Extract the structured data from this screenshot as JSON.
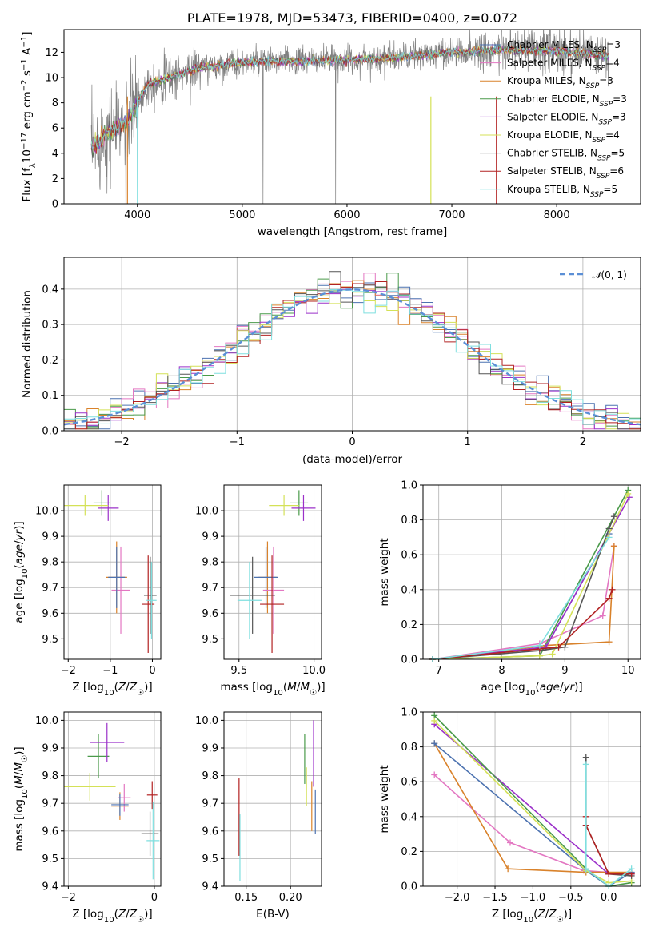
{
  "figure_title": "PLATE=1978, MJD=53473, FIBERID=0400, z=0.072",
  "palette": [
    "#4c72b0",
    "#e377c2",
    "#d9822b",
    "#4a9a4a",
    "#9b30c9",
    "#d4e157",
    "#555555",
    "#b22222",
    "#7fdfdf"
  ],
  "chart_data": [
    {
      "id": "spectrum",
      "type": "line",
      "title": "PLATE=1978, MJD=53473, FIBERID=0400, z=0.072",
      "xlabel": "wavelength [Angstrom, rest frame]",
      "ylabel": "Flux [f_λ 10^-17 erg cm^-2 s^-1 A^-1]",
      "xlim": [
        3300,
        8800
      ],
      "ylim": [
        0,
        13.8
      ],
      "xticks": [
        4000,
        5000,
        6000,
        7000,
        8000
      ],
      "yticks": [
        0,
        2,
        4,
        6,
        8,
        10,
        12
      ],
      "continuum_x": [
        3560,
        3700,
        3900,
        4000,
        4100,
        4300,
        4600,
        5000,
        5500,
        6000,
        6500,
        7000,
        7500,
        8000,
        8500
      ],
      "continuum_y": [
        4.3,
        5.5,
        6.5,
        8.0,
        9.5,
        10.0,
        10.8,
        11.2,
        11.3,
        11.4,
        11.6,
        12.0,
        12.2,
        12.1,
        11.7
      ],
      "legend_location": "right",
      "series": [
        {
          "name": "Chabrier MILES, N_SSP=3",
          "color": "#4c72b0"
        },
        {
          "name": "Salpeter MILES, N_SSP=4",
          "color": "#e377c2"
        },
        {
          "name": "Kroupa MILES, N_SSP=3",
          "color": "#d9822b"
        },
        {
          "name": "Chabrier ELODIE, N_SSP=3",
          "color": "#4a9a4a"
        },
        {
          "name": "Salpeter ELODIE, N_SSP=3",
          "color": "#9b30c9"
        },
        {
          "name": "Kroupa ELODIE, N_SSP=4",
          "color": "#d4e157"
        },
        {
          "name": "Chabrier STELIB, N_SSP=5",
          "color": "#555555"
        },
        {
          "name": "Salpeter STELIB, N_SSP=6",
          "color": "#b22222"
        },
        {
          "name": "Kroupa STELIB, N_SSP=5",
          "color": "#7fdfdf"
        }
      ]
    },
    {
      "id": "residuals",
      "type": "line",
      "xlabel": "(data-model)/error",
      "ylabel": "Normed distribution",
      "xlim": [
        -2.5,
        2.5
      ],
      "ylim": [
        0,
        0.49
      ],
      "xticks": [
        -2,
        -1,
        0,
        1,
        2
      ],
      "yticks": [
        0.0,
        0.1,
        0.2,
        0.3,
        0.4
      ],
      "grid": true,
      "bin_width": 0.1,
      "legend": "N(0,1)",
      "legend_location": "upper right",
      "gaussian_color": "#5b8fd6"
    },
    {
      "id": "age-vs-Z",
      "type": "scatter",
      "xlabel": "Z [log10(Z/Z☉)]",
      "ylabel": "age  [log10(age/yr)]",
      "xlim": [
        -2.1,
        0.2
      ],
      "ylim": [
        9.42,
        10.1
      ],
      "xticks": [
        -2,
        -1,
        0
      ],
      "yticks": [
        9.5,
        9.6,
        9.7,
        9.8,
        9.9,
        10.0
      ],
      "grid": true,
      "points": [
        {
          "x": -1.2,
          "y": 10.03,
          "xerr": 0.2,
          "yerr": 0.05,
          "color": "#4a9a4a"
        },
        {
          "x": -1.05,
          "y": 10.01,
          "xerr": 0.25,
          "yerr": 0.05,
          "color": "#9b30c9"
        },
        {
          "x": -1.6,
          "y": 10.02,
          "xerr": 0.55,
          "yerr": 0.04,
          "color": "#d4e157"
        },
        {
          "x": -0.85,
          "y": 9.74,
          "xerr": 0.25,
          "yerr": 0.14,
          "color": "#d9822b"
        },
        {
          "x": -0.75,
          "y": 9.69,
          "xerr": 0.22,
          "yerr": 0.17,
          "color": "#e377c2"
        },
        {
          "x": -0.85,
          "y": 9.74,
          "xerr": 0.2,
          "yerr": 0.12,
          "color": "#4c72b0"
        },
        {
          "x": -0.05,
          "y": 9.67,
          "xerr": 0.15,
          "yerr": 0.15,
          "color": "#555555"
        },
        {
          "x": -0.1,
          "y": 9.635,
          "xerr": 0.15,
          "yerr": 0.19,
          "color": "#b22222"
        },
        {
          "x": -0.02,
          "y": 9.65,
          "xerr": 0.12,
          "yerr": 0.15,
          "color": "#7fdfdf"
        }
      ]
    },
    {
      "id": "age-vs-mass",
      "type": "scatter",
      "xlabel": "mass [log10(M/M☉)]",
      "ylabel": "",
      "xlim": [
        9.4,
        10.05
      ],
      "ylim": [
        9.42,
        10.1
      ],
      "xticks": [
        9.5,
        10.0
      ],
      "yticks": [
        9.5,
        9.6,
        9.7,
        9.8,
        9.9,
        10.0
      ],
      "grid": true,
      "points": [
        {
          "x": 9.9,
          "y": 10.03,
          "xerr": 0.06,
          "yerr": 0.05,
          "color": "#4a9a4a"
        },
        {
          "x": 9.93,
          "y": 10.01,
          "xerr": 0.08,
          "yerr": 0.05,
          "color": "#9b30c9"
        },
        {
          "x": 9.8,
          "y": 10.02,
          "xerr": 0.1,
          "yerr": 0.04,
          "color": "#d4e157"
        },
        {
          "x": 9.69,
          "y": 9.74,
          "xerr": 0.06,
          "yerr": 0.14,
          "color": "#d9822b"
        },
        {
          "x": 9.73,
          "y": 9.69,
          "xerr": 0.07,
          "yerr": 0.17,
          "color": "#e377c2"
        },
        {
          "x": 9.68,
          "y": 9.74,
          "xerr": 0.08,
          "yerr": 0.12,
          "color": "#4c72b0"
        },
        {
          "x": 9.59,
          "y": 9.67,
          "xerr": 0.15,
          "yerr": 0.15,
          "color": "#555555"
        },
        {
          "x": 9.72,
          "y": 9.635,
          "xerr": 0.08,
          "yerr": 0.19,
          "color": "#b22222"
        },
        {
          "x": 9.57,
          "y": 9.65,
          "xerr": 0.08,
          "yerr": 0.15,
          "color": "#7fdfdf"
        }
      ]
    },
    {
      "id": "weight-vs-age",
      "type": "line",
      "xlabel": "age  [log10(age/yr)]",
      "ylabel": "mass weight",
      "xlim": [
        6.75,
        10.2
      ],
      "ylim": [
        0,
        1.0
      ],
      "xticks": [
        7,
        8,
        9,
        10
      ],
      "yticks": [
        0.0,
        0.2,
        0.4,
        0.6,
        0.8,
        1.0
      ],
      "grid": true,
      "series": [
        {
          "color": "#4c72b0",
          "x": [
            6.9,
            8.7,
            9.7
          ],
          "y": [
            0.0,
            0.07,
            0.72
          ]
        },
        {
          "color": "#e377c2",
          "x": [
            6.9,
            8.6,
            9.6,
            9.78
          ],
          "y": [
            0.0,
            0.09,
            0.25,
            0.65
          ]
        },
        {
          "color": "#d9822b",
          "x": [
            6.9,
            8.7,
            9.7,
            9.78
          ],
          "y": [
            0.0,
            0.08,
            0.1,
            0.65
          ]
        },
        {
          "color": "#4a9a4a",
          "x": [
            6.9,
            8.6,
            10.0
          ],
          "y": [
            0.0,
            0.02,
            0.97
          ]
        },
        {
          "color": "#9b30c9",
          "x": [
            6.9,
            8.7,
            10.02
          ],
          "y": [
            0.0,
            0.07,
            0.93
          ]
        },
        {
          "color": "#d4e157",
          "x": [
            6.9,
            8.6,
            8.8,
            10.0
          ],
          "y": [
            0.0,
            0.02,
            0.03,
            0.95
          ]
        },
        {
          "color": "#555555",
          "x": [
            6.9,
            8.6,
            9.0,
            9.7,
            9.78
          ],
          "y": [
            0.0,
            0.05,
            0.07,
            0.75,
            0.82
          ]
        },
        {
          "color": "#b22222",
          "x": [
            6.9,
            8.6,
            8.9,
            9.7,
            9.75
          ],
          "y": [
            0.0,
            0.06,
            0.07,
            0.35,
            0.4
          ]
        },
        {
          "color": "#7fdfdf",
          "x": [
            6.9,
            8.6,
            9.7
          ],
          "y": [
            0.0,
            0.08,
            0.7
          ]
        }
      ]
    },
    {
      "id": "mass-vs-Z",
      "type": "scatter",
      "xlabel": "Z [log10(Z/Z☉)]",
      "ylabel": "mass [log10(M/M☉)]",
      "xlim": [
        -2.1,
        0.15
      ],
      "ylim": [
        9.4,
        10.03
      ],
      "xticks": [
        -2,
        0
      ],
      "yticks": [
        9.4,
        9.5,
        9.6,
        9.7,
        9.8,
        9.9,
        10.0
      ],
      "grid": true,
      "points": [
        {
          "x": -1.3,
          "y": 9.87,
          "xerr": 0.25,
          "yerr": 0.08,
          "color": "#4a9a4a"
        },
        {
          "x": -1.1,
          "y": 9.92,
          "xerr": 0.4,
          "yerr": 0.07,
          "color": "#9b30c9"
        },
        {
          "x": -1.5,
          "y": 9.76,
          "xerr": 0.6,
          "yerr": 0.05,
          "color": "#d4e157"
        },
        {
          "x": -0.8,
          "y": 9.69,
          "xerr": 0.2,
          "yerr": 0.05,
          "color": "#d9822b"
        },
        {
          "x": -0.7,
          "y": 9.72,
          "xerr": 0.15,
          "yerr": 0.05,
          "color": "#e377c2"
        },
        {
          "x": -0.8,
          "y": 9.695,
          "xerr": 0.2,
          "yerr": 0.04,
          "color": "#4c72b0"
        },
        {
          "x": -0.1,
          "y": 9.59,
          "xerr": 0.2,
          "yerr": 0.08,
          "color": "#555555"
        },
        {
          "x": -0.05,
          "y": 9.73,
          "xerr": 0.12,
          "yerr": 0.05,
          "color": "#b22222"
        },
        {
          "x": -0.03,
          "y": 9.565,
          "xerr": 0.15,
          "yerr": 0.14,
          "color": "#7fdfdf"
        }
      ]
    },
    {
      "id": "mass-vs-ebv",
      "type": "scatter",
      "xlabel": "E(B-V)",
      "ylabel": "",
      "xlim": [
        0.125,
        0.235
      ],
      "ylim": [
        9.4,
        10.03
      ],
      "xticks": [
        0.15,
        0.2
      ],
      "yticks": [
        9.4,
        9.5,
        9.6,
        9.7,
        9.8,
        9.9,
        10.0
      ],
      "grid": true,
      "points": [
        {
          "x": 0.142,
          "y": 9.65,
          "xerr": 0.0,
          "yerr": 0.14,
          "color": "#b22222"
        },
        {
          "x": 0.143,
          "y": 9.54,
          "xerr": 0.0,
          "yerr": 0.12,
          "color": "#7fdfdf"
        },
        {
          "x": 0.216,
          "y": 9.86,
          "xerr": 0.0,
          "yerr": 0.09,
          "color": "#4a9a4a"
        },
        {
          "x": 0.218,
          "y": 9.76,
          "xerr": 0.0,
          "yerr": 0.07,
          "color": "#d4e157"
        },
        {
          "x": 0.226,
          "y": 9.88,
          "xerr": 0.0,
          "yerr": 0.12,
          "color": "#9b30c9"
        },
        {
          "x": 0.224,
          "y": 9.69,
          "xerr": 0.0,
          "yerr": 0.09,
          "color": "#d9822b"
        },
        {
          "x": 0.228,
          "y": 9.67,
          "xerr": 0.0,
          "yerr": 0.08,
          "color": "#4c72b0"
        }
      ]
    },
    {
      "id": "weight-vs-Z",
      "type": "line",
      "xlabel": "Z [log10(Z/Z☉)]",
      "ylabel": "mass weight",
      "xlim": [
        -2.45,
        0.42
      ],
      "ylim": [
        0,
        1.0
      ],
      "xticks": [
        -2.0,
        -1.5,
        -1.0,
        -0.5,
        0.0
      ],
      "yticks": [
        0.0,
        0.2,
        0.4,
        0.6,
        0.8,
        1.0
      ],
      "grid": true,
      "series": [
        {
          "color": "#e377c2",
          "x": [
            -2.3,
            -1.3,
            -0.33,
            0.3
          ],
          "y": [
            0.64,
            0.25,
            0.09,
            0.07
          ]
        },
        {
          "color": "#d9822b",
          "x": [
            -2.3,
            -1.33,
            -0.3,
            0.3
          ],
          "y": [
            0.82,
            0.1,
            0.08,
            0.08
          ]
        },
        {
          "color": "#4c72b0",
          "x": [
            -2.3,
            -0.3,
            0.0,
            0.3
          ],
          "y": [
            0.82,
            0.09,
            0.0,
            0.08
          ]
        },
        {
          "color": "#9b30c9",
          "x": [
            -2.3,
            0.0,
            0.3
          ],
          "y": [
            0.93,
            0.07,
            0.07
          ]
        },
        {
          "color": "#4a9a4a",
          "x": [
            -2.3,
            -0.3,
            0.0,
            0.3
          ],
          "y": [
            0.98,
            0.1,
            0.0,
            0.02
          ]
        },
        {
          "color": "#d4e157",
          "x": [
            -2.3,
            -0.3,
            0.0,
            0.3
          ],
          "y": [
            0.95,
            0.09,
            0.02,
            0.03
          ]
        },
        {
          "color": "#555555",
          "x": [
            -0.3,
            -0.3,
            0.0,
            0.3
          ],
          "y": [
            0.74,
            0.35,
            0.07,
            0.06
          ]
        },
        {
          "color": "#b22222",
          "x": [
            -0.3,
            -0.3,
            0.0,
            0.3
          ],
          "y": [
            0.4,
            0.35,
            0.07,
            0.07
          ]
        },
        {
          "color": "#7fdfdf",
          "x": [
            -0.3,
            -0.3,
            0.0,
            0.3
          ],
          "y": [
            0.7,
            0.1,
            0.0,
            0.1
          ]
        }
      ]
    }
  ]
}
